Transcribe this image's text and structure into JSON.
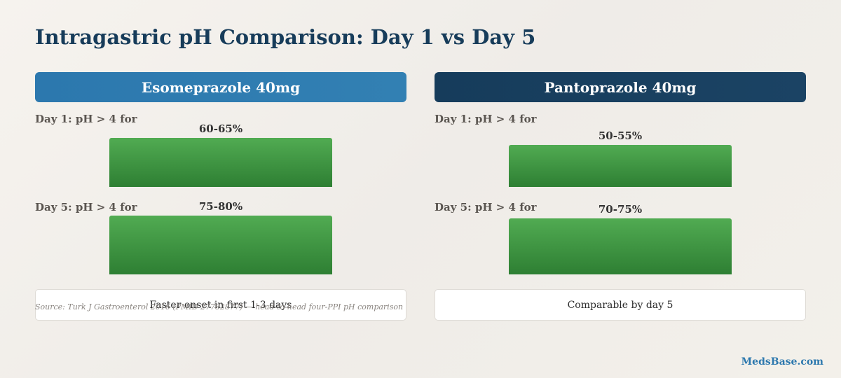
{
  "title": "Intragastric pH Comparison: Day 1 vs Day 5",
  "chart_data": {
    "type": "bar",
    "title": "Intragastric pH Comparison: Day 1 vs Day 5",
    "series": [
      {
        "name": "Esomeprazole 40mg",
        "rows": [
          {
            "label": "Day 1: pH > 4 for",
            "value_text": "60-65%",
            "value": 62.5
          },
          {
            "label": "Day 5: pH > 4 for",
            "value_text": "75-80%",
            "value": 77.5
          }
        ],
        "note": "Faster onset in first 1-3 days"
      },
      {
        "name": "Pantoprazole 40mg",
        "rows": [
          {
            "label": "Day 1: pH > 4 for",
            "value_text": "50-55%",
            "value": 52.5
          },
          {
            "label": "Day 5: pH > 4 for",
            "value_text": "70-75%",
            "value": 72.5
          }
        ],
        "note": "Comparable by day 5"
      }
    ]
  },
  "source": "Source: Turk J Gastroenterol 2016 (PMID 27782877) — head-to-head four-PPI pH comparison",
  "brand": "MedsBase.com"
}
